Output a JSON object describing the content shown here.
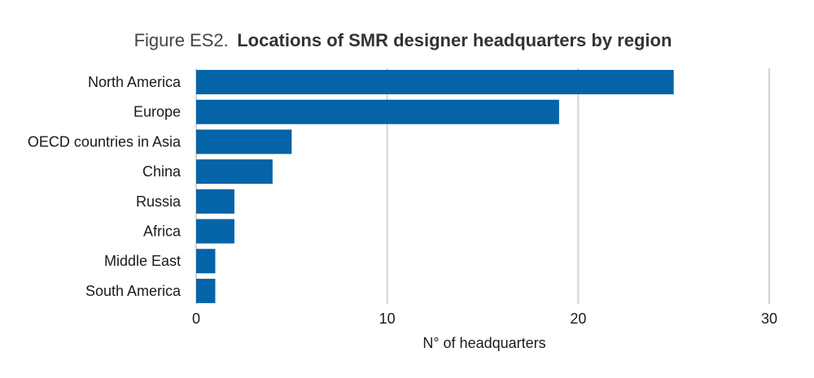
{
  "chart_data": {
    "type": "bar",
    "orientation": "horizontal",
    "title_prefix": "Figure ES2.",
    "title": "Locations of SMR designer headquarters by region",
    "xlabel": "N° of headquarters",
    "ylabel": "",
    "categories": [
      "North America",
      "Europe",
      "OECD countries in Asia",
      "China",
      "Russia",
      "Africa",
      "Middle East",
      "South America"
    ],
    "values": [
      25,
      19,
      5,
      4,
      2,
      2,
      1,
      1
    ],
    "xlim": [
      0,
      30
    ],
    "xticks": [
      "0",
      "10",
      "20",
      "30"
    ],
    "grid": "vertical",
    "legend": "none",
    "bar_color": "#0563a8"
  }
}
